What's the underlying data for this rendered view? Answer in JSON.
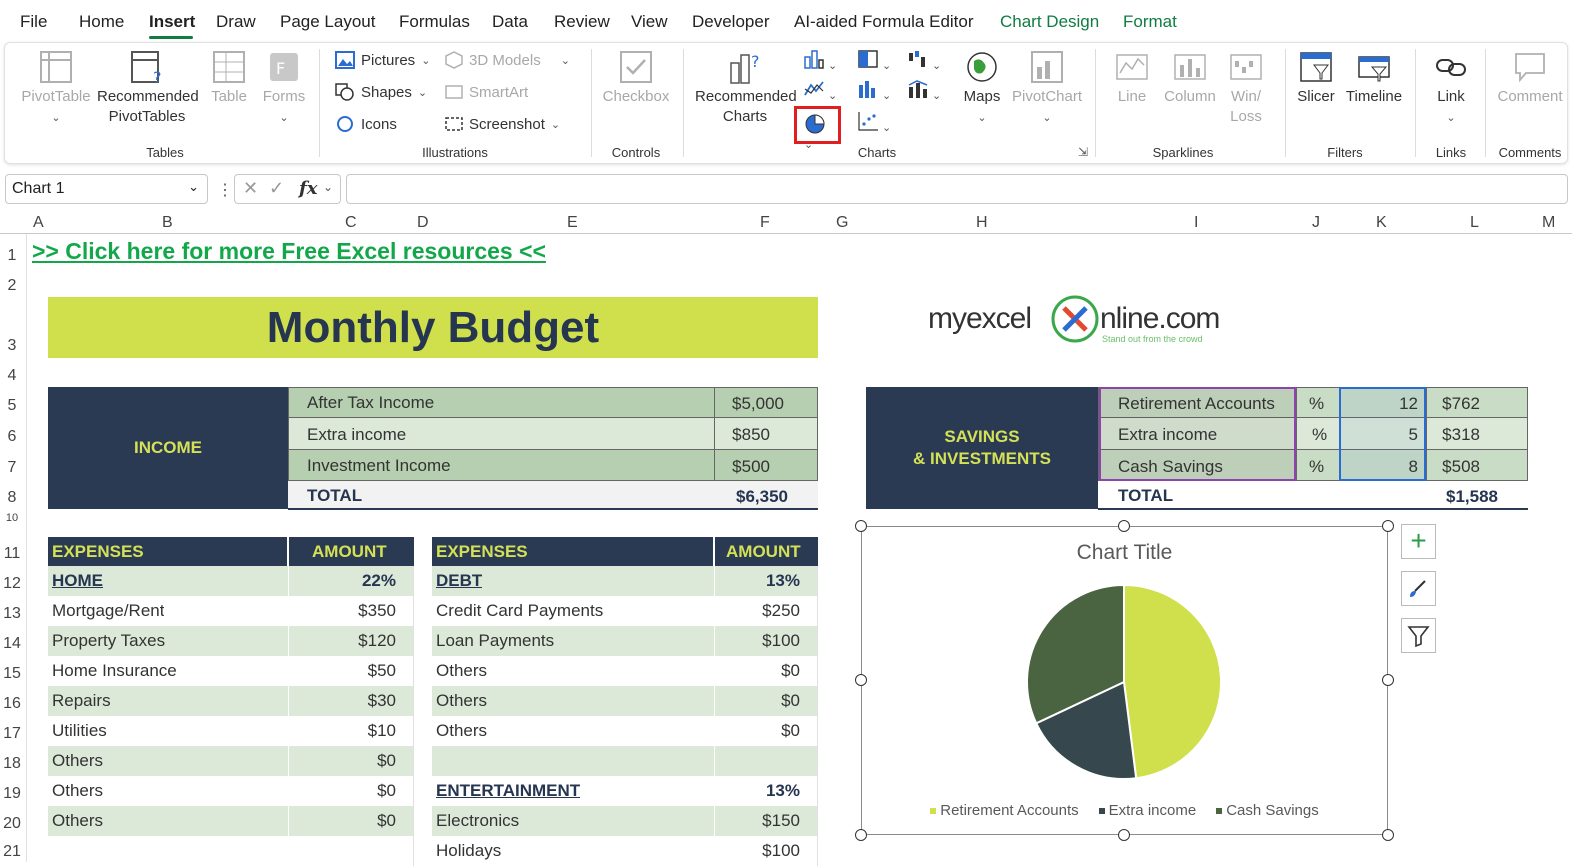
{
  "menu": {
    "items": [
      "File",
      "Home",
      "Insert",
      "Draw",
      "Page Layout",
      "Formulas",
      "Data",
      "Review",
      "View",
      "Developer",
      "AI-aided Formula Editor",
      "Chart Design",
      "Format"
    ]
  },
  "ribbon": {
    "tables": {
      "pivottable": "PivotTable",
      "recommended_pivot_1": "Recommended",
      "recommended_pivot_2": "PivotTables",
      "table": "Table",
      "forms": "Forms",
      "group": "Tables"
    },
    "illustrations": {
      "pictures": "Pictures",
      "shapes": "Shapes",
      "icons": "Icons",
      "models": "3D Models",
      "smartart": "SmartArt",
      "screenshot": "Screenshot",
      "group": "Illustrations"
    },
    "controls": {
      "checkbox": "Checkbox",
      "group": "Controls"
    },
    "charts": {
      "recommended_1": "Recommended",
      "recommended_2": "Charts",
      "maps": "Maps",
      "pivotchart": "PivotChart",
      "group": "Charts"
    },
    "sparklines": {
      "line": "Line",
      "column": "Column",
      "winloss_1": "Win/",
      "winloss_2": "Loss",
      "group": "Sparklines"
    },
    "filters": {
      "slicer": "Slicer",
      "timeline": "Timeline",
      "group": "Filters"
    },
    "links": {
      "link": "Link",
      "group": "Links"
    },
    "comments": {
      "comment": "Comment",
      "group": "Comments"
    }
  },
  "formula_bar": {
    "name_box": "Chart 1",
    "fx": "fx",
    "formula": ""
  },
  "columns": [
    "A",
    "B",
    "C",
    "D",
    "E",
    "F",
    "G",
    "H",
    "I",
    "J",
    "K",
    "L",
    "M"
  ],
  "rows": [
    "1",
    "2",
    "3",
    "4",
    "5",
    "6",
    "7",
    "8",
    "10",
    "11",
    "12",
    "13",
    "14",
    "15",
    "16",
    "17",
    "18",
    "19",
    "20",
    "21"
  ],
  "sheet": {
    "link": ">> Click here for more Free Excel resources <<",
    "title": "Monthly Budget",
    "logo": "myexcel",
    "logo_suffix": "nline.com",
    "logo_tagline": "Stand out from the crowd",
    "income": {
      "label": "INCOME",
      "rows": [
        {
          "name": "After Tax Income",
          "amount": "$5,000"
        },
        {
          "name": "Extra income",
          "amount": "$850"
        },
        {
          "name": "Investment Income",
          "amount": "$500"
        }
      ],
      "total_label": "TOTAL",
      "total": "$6,350"
    },
    "savings": {
      "label_1": "SAVINGS",
      "label_2": "& INVESTMENTS",
      "rows": [
        {
          "name": "Retirement Accounts",
          "unit": "%",
          "pct": "12",
          "amount": "$762"
        },
        {
          "name": "Extra income",
          "unit": "%",
          "pct": "5",
          "amount": "$318"
        },
        {
          "name": "Cash Savings",
          "unit": "%",
          "pct": "8",
          "amount": "$508"
        }
      ],
      "total_label": "TOTAL",
      "total": "$1,588"
    },
    "expenses_left": {
      "hdr_name": "EXPENSES",
      "hdr_amount": "AMOUNT",
      "section": "HOME",
      "section_pct": "22%",
      "rows": [
        {
          "name": "Mortgage/Rent",
          "amount": "$350"
        },
        {
          "name": "Property Taxes",
          "amount": "$120"
        },
        {
          "name": "Home Insurance",
          "amount": "$50"
        },
        {
          "name": "Repairs",
          "amount": "$30"
        },
        {
          "name": "Utilities",
          "amount": "$10"
        },
        {
          "name": "Others",
          "amount": "$0"
        },
        {
          "name": "Others",
          "amount": "$0"
        },
        {
          "name": "Others",
          "amount": "$0"
        }
      ]
    },
    "expenses_right": {
      "hdr_name": "EXPENSES",
      "hdr_amount": "AMOUNT",
      "section": "DEBT",
      "section_pct": "13%",
      "rows": [
        {
          "name": "Credit Card Payments",
          "amount": "$250"
        },
        {
          "name": "Loan Payments",
          "amount": "$100"
        },
        {
          "name": "Others",
          "amount": "$0"
        },
        {
          "name": "Others",
          "amount": "$0"
        },
        {
          "name": "Others",
          "amount": "$0"
        }
      ],
      "section2": "ENTERTAINMENT",
      "section2_pct": "13%",
      "rows2": [
        {
          "name": "Electronics",
          "amount": "$150"
        },
        {
          "name": "Holidays",
          "amount": "$100"
        }
      ]
    }
  },
  "chart_data": {
    "type": "pie",
    "title": "Chart Title",
    "categories": [
      "Retirement Accounts",
      "Extra income",
      "Cash Savings"
    ],
    "values": [
      12,
      5,
      8
    ],
    "colors": [
      "#d0df4c",
      "#36484d",
      "#4a6340"
    ],
    "legend": "bottom"
  },
  "colors": {
    "accent": "#107c41",
    "navy": "#2a3a52",
    "lime": "#d0df4c"
  }
}
